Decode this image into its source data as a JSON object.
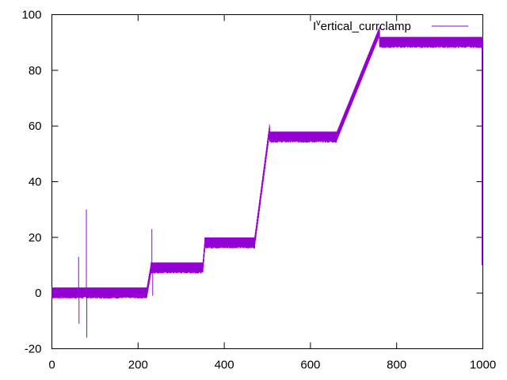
{
  "chart_data": {
    "type": "line",
    "title": "",
    "xlabel": "",
    "ylabel": "",
    "xlim": [
      0,
      1000
    ],
    "ylim": [
      -20,
      100
    ],
    "xticks": [
      "0",
      "200",
      "400",
      "600",
      "800",
      "1000"
    ],
    "yticks": [
      "-20",
      "0",
      "20",
      "40",
      "60",
      "80",
      "100"
    ],
    "grid": false,
    "legend_position": "top-right",
    "series": [
      {
        "name": "I^vertical_currclamp",
        "color": "#9400d3",
        "segments": [
          {
            "x_start": 0,
            "x_end": 220,
            "level": 0,
            "noise": 2
          },
          {
            "x_start": 230,
            "x_end": 350,
            "level": 9,
            "noise": 2
          },
          {
            "x_start": 355,
            "x_end": 470,
            "level": 18,
            "noise": 2
          },
          {
            "x_start": 505,
            "x_end": 660,
            "level": 56,
            "noise": 2
          },
          {
            "x_start": 760,
            "x_end": 1000,
            "level": 90,
            "noise": 2
          }
        ],
        "ramps": [
          {
            "x_start": 220,
            "x_end": 230,
            "y_start": 0,
            "y_end": 9
          },
          {
            "x_start": 350,
            "x_end": 355,
            "y_start": 9,
            "y_end": 18
          },
          {
            "x_start": 470,
            "x_end": 505,
            "y_start": 18,
            "y_end": 59
          },
          {
            "x_start": 660,
            "x_end": 760,
            "y_start": 56,
            "y_end": 94
          }
        ],
        "spikes": [
          {
            "x": 62,
            "y": 13
          },
          {
            "x": 63,
            "y": -11
          },
          {
            "x": 80,
            "y": 30
          },
          {
            "x": 81,
            "y": -16
          },
          {
            "x": 232,
            "y": 23
          },
          {
            "x": 234,
            "y": -1
          }
        ],
        "end_drop": {
          "x": 1000,
          "y": 10
        }
      }
    ]
  },
  "legend": {
    "label_main": "I",
    "label_super": "v",
    "label_rest": "ertical_currclamp"
  }
}
